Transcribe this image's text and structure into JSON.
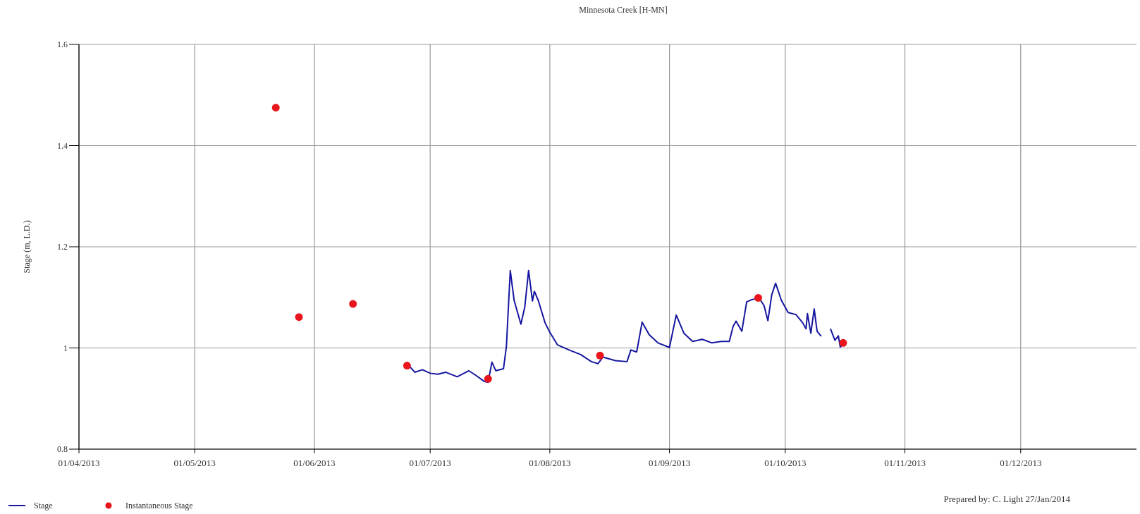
{
  "chart_data": {
    "type": "line",
    "title": "Minnesota Creek [H-MN]",
    "ylabel": "Stage (m, L.D.)",
    "xlim": [
      "2013-04-01",
      "2013-12-31"
    ],
    "xticks": [
      {
        "value": "2013-04-01",
        "label": "01/04/2013"
      },
      {
        "value": "2013-05-01",
        "label": "01/05/2013"
      },
      {
        "value": "2013-06-01",
        "label": "01/06/2013"
      },
      {
        "value": "2013-07-01",
        "label": "01/07/2013"
      },
      {
        "value": "2013-08-01",
        "label": "01/08/2013"
      },
      {
        "value": "2013-09-01",
        "label": "01/09/2013"
      },
      {
        "value": "2013-10-01",
        "label": "01/10/2013"
      },
      {
        "value": "2013-11-01",
        "label": "01/11/2013"
      },
      {
        "value": "2013-12-01",
        "label": "01/12/2013"
      }
    ],
    "ylim": [
      0.8,
      1.6
    ],
    "yticks": [
      0.8,
      1,
      1.2,
      1.4,
      1.6
    ],
    "grid": true,
    "legend": "bottom left",
    "annotations": [
      "Prepared by: C. Light 27/Jan/2014"
    ],
    "series": [
      {
        "name": "Stage",
        "color": "#1616a0",
        "line_style": "solid",
        "x": [
          "2013-06-25T12:00",
          "2013-06-27",
          "2013-06-29",
          "2013-07-01",
          "2013-07-03",
          "2013-07-05",
          "2013-07-08",
          "2013-07-11",
          "2013-07-13",
          "2013-07-15",
          "2013-07-16",
          "2013-07-17",
          "2013-07-18",
          "2013-07-20",
          "2013-07-20T18:00",
          "2013-07-21T18:00",
          "2013-07-22T18:00",
          "2013-07-24T12:00",
          "2013-07-25T12:00",
          "2013-07-26T12:00",
          "2013-07-27T12:00",
          "2013-07-28",
          "2013-07-29",
          "2013-07-30T18:00",
          "2013-08-01",
          "2013-08-03",
          "2013-08-06",
          "2013-08-09",
          "2013-08-11T18:00",
          "2013-08-13T12:00",
          "2013-08-14T18:00",
          "2013-08-18",
          "2013-08-21",
          "2013-08-22",
          "2013-08-23T12:00",
          "2013-08-24T22:00",
          "2013-08-26T18:00",
          "2013-08-29",
          "2013-09-01",
          "2013-09-02T18:00",
          "2013-09-04T18:00",
          "2013-09-07",
          "2013-09-09T12:00",
          "2013-09-12",
          "2013-09-14T12:00",
          "2013-09-16T12:00",
          "2013-09-17T12:00",
          "2013-09-18T06:00",
          "2013-09-19T18:00",
          "2013-09-21",
          "2013-09-22T12:00",
          "2013-09-24T06:00",
          "2013-09-25T12:00",
          "2013-09-26T12:00",
          "2013-09-27T12:00",
          "2013-09-28T12:00",
          "2013-09-30",
          "2013-10-01T18:00",
          "2013-10-03T18:00",
          "2013-10-05T12:00",
          "2013-10-06T09:00",
          "2013-10-06T18:00",
          "2013-10-07T15:00",
          "2013-10-08T12:00",
          "2013-10-09T06:00",
          "2013-10-10T06:00",
          "2013-10-11T12:00",
          "2013-10-12T18:00",
          "2013-10-13T21:00",
          "2013-10-14T18:00",
          "2013-10-15T06:00",
          "2013-10-16T06:00"
        ],
        "values": [
          0.965,
          0.952,
          0.957,
          0.95,
          0.948,
          0.952,
          0.943,
          0.955,
          0.945,
          0.934,
          0.932,
          0.972,
          0.955,
          0.959,
          1.003,
          1.153,
          1.094,
          1.047,
          1.08,
          1.153,
          1.093,
          1.112,
          1.094,
          1.05,
          1.031,
          1.006,
          0.996,
          0.987,
          0.973,
          0.969,
          0.982,
          0.975,
          0.973,
          0.996,
          0.992,
          1.051,
          1.026,
          1.01,
          1.001,
          1.065,
          1.029,
          1.013,
          1.017,
          1.01,
          1.013,
          1.013,
          1.043,
          1.053,
          1.033,
          1.091,
          1.096,
          1.098,
          1.084,
          1.054,
          1.105,
          1.128,
          1.094,
          1.07,
          1.066,
          1.05,
          1.038,
          1.068,
          1.029,
          1.077,
          1.033,
          1.024,
          null,
          1.037,
          1.015,
          1.024,
          1.002,
          1.01
        ]
      },
      {
        "name": "Instantaneous Stage",
        "type": "scatter",
        "color": "#e8161c",
        "marker": "circle",
        "x": [
          "2013-05-22",
          "2013-05-28",
          "2013-06-11",
          "2013-06-25",
          "2013-07-16",
          "2013-08-14",
          "2013-09-24",
          "2013-10-16"
        ],
        "values": [
          1.475,
          1.061,
          1.087,
          0.965,
          0.939,
          0.985,
          1.099,
          1.01
        ]
      }
    ]
  }
}
